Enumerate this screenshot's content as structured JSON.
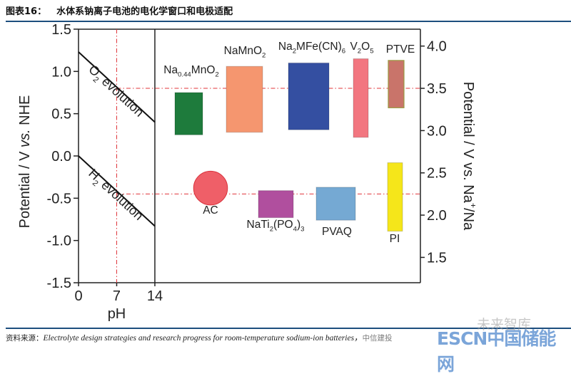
{
  "header": {
    "figure_no": "图表16：",
    "title": "水体系钠离子电池的电化学窗口和电极适配"
  },
  "footer": {
    "source_label": "资料来源：",
    "source_text": "Electrolyte design strategies and research progress for room-temperature sodium-ion batteries，",
    "source_org": "中信建投"
  },
  "watermarks": {
    "wechat": "未来智库",
    "escn": "ESCN中国储能网"
  },
  "chart_data": {
    "type": "range-bar",
    "left_axis": {
      "label_segments": [
        {
          "t": "Potential / V "
        },
        {
          "t": "vs.",
          "italic": true
        },
        {
          "t": " NHE"
        }
      ],
      "range": [
        -1.5,
        1.5
      ],
      "ticks": [
        "1.5",
        "1.0",
        "0.5",
        "0.0",
        "-0.5",
        "-1.0",
        "-1.5"
      ]
    },
    "right_axis": {
      "label_segments": [
        {
          "t": "Potential / V vs. Na"
        },
        {
          "t": "+",
          "sup": true
        },
        {
          "t": "/Na"
        }
      ],
      "offset_vs_nhe": 2.7,
      "ticks": [
        "4.0",
        "3.5",
        "3.0",
        "2.5",
        "2.0",
        "1.5"
      ]
    },
    "x_axis": {
      "label": "pH",
      "range": [
        0,
        14
      ],
      "ticks": [
        "0",
        "7",
        "14"
      ]
    },
    "stability_lines": [
      {
        "name": "O2 evolution",
        "segments": [
          {
            "t": "O"
          },
          {
            "t": "2",
            "sub": true
          },
          {
            "t": " evolution"
          }
        ],
        "ph": [
          0,
          14
        ],
        "potential": [
          1.23,
          0.4
        ]
      },
      {
        "name": "H2 evolution",
        "segments": [
          {
            "t": "H"
          },
          {
            "t": "2",
            "sub": true
          },
          {
            "t": " evolution"
          }
        ],
        "ph": [
          0,
          14
        ],
        "potential": [
          0.0,
          -0.83
        ]
      }
    ],
    "reference_lines": {
      "ph": 7,
      "potentials_nhe": [
        0.8,
        -0.45
      ]
    },
    "cathodes": [
      {
        "segments": [
          {
            "t": "Na"
          },
          {
            "t": "0.44",
            "sub": true
          },
          {
            "t": "MnO"
          },
          {
            "t": "2",
            "sub": true
          }
        ],
        "range": [
          2.95,
          3.45
        ],
        "color": "#1e7b3c"
      },
      {
        "segments": [
          {
            "t": "NaMnO"
          },
          {
            "t": "2",
            "sub": true
          }
        ],
        "range": [
          2.98,
          3.76
        ],
        "color": "#f5966f"
      },
      {
        "segments": [
          {
            "t": "Na"
          },
          {
            "t": "2",
            "sub": true
          },
          {
            "t": "MFe(CN)"
          },
          {
            "t": "6",
            "sub": true
          }
        ],
        "range": [
          3.01,
          3.8
        ],
        "color": "#344fa1"
      },
      {
        "segments": [
          {
            "t": "V"
          },
          {
            "t": "2",
            "sub": true
          },
          {
            "t": "O"
          },
          {
            "t": "5",
            "sub": true
          }
        ],
        "range": [
          2.92,
          3.85
        ],
        "color": "#f27680"
      },
      {
        "segments": [
          {
            "t": "PTVE"
          }
        ],
        "range": [
          3.27,
          3.83
        ],
        "color": "#c9746a"
      }
    ],
    "anodes": [
      {
        "segments": [
          {
            "t": "AC"
          }
        ],
        "range": [
          2.12,
          2.52
        ],
        "color": "#ef5f68",
        "shape": "circle"
      },
      {
        "segments": [
          {
            "t": "NaTi"
          },
          {
            "t": "2",
            "sub": true
          },
          {
            "t": "(PO"
          },
          {
            "t": "4",
            "sub": true
          },
          {
            "t": ")"
          },
          {
            "t": "3",
            "sub": true
          }
        ],
        "range": [
          1.97,
          2.29
        ],
        "color": "#b04f9e"
      },
      {
        "segments": [
          {
            "t": "PVAQ"
          }
        ],
        "range": [
          1.94,
          2.33
        ],
        "color": "#75a9d3"
      },
      {
        "segments": [
          {
            "t": "PI"
          }
        ],
        "range": [
          1.81,
          2.62
        ],
        "color": "#f5e61a"
      }
    ]
  }
}
